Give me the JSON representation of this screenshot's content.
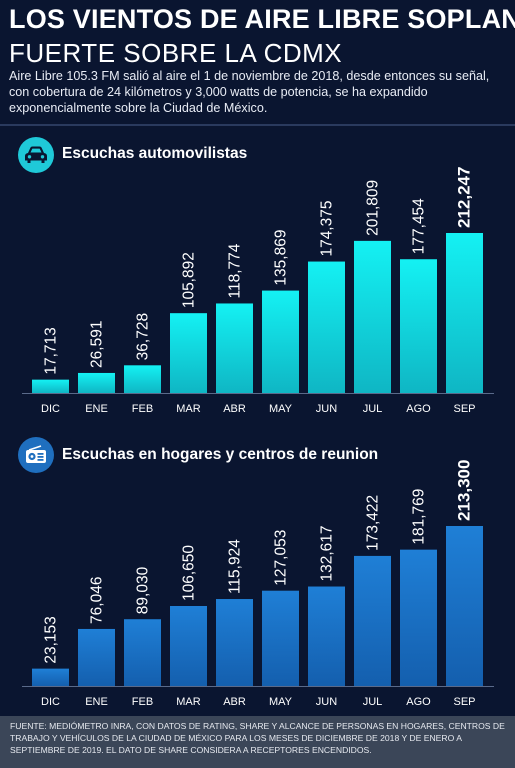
{
  "header": {
    "title_line1": "LOS VIENTOS DE AIRE LIBRE SOPLAN",
    "title_line2": "FUERTE SOBRE LA CDMX",
    "intro": "Aire Libre 105.3 FM salió al aire el 1 de noviembre de 2018, desde entonces su señal, con cobertura de 24 kilómetros y 3,000 watts de potencia, se ha expandido exponencialmente sobre la Ciudad de México."
  },
  "sections": [
    {
      "title": "Escuchas automovilistas",
      "icon": "car-icon",
      "icon_bg": "#1fc9d8"
    },
    {
      "title": "Escuchas en hogares y centros de reunion",
      "icon": "radio-icon",
      "icon_bg": "#1f6fbf"
    }
  ],
  "chart_data": [
    {
      "type": "bar",
      "title": "Escuchas automovilistas",
      "categories": [
        "DIC",
        "ENE",
        "FEB",
        "MAR",
        "ABR",
        "MAY",
        "JUN",
        "JUL",
        "AGO",
        "SEP"
      ],
      "values": [
        17713,
        26591,
        36728,
        105892,
        118774,
        135869,
        174375,
        201809,
        177454,
        212247
      ],
      "labels": [
        "17,713",
        "26,591",
        "36,728",
        "105,892",
        "118,774",
        "135,869",
        "174,375",
        "201,809",
        "177,454",
        "212,247"
      ],
      "bold_last_label": true,
      "colors": {
        "top": "#14f1f3",
        "bottom": "#0fb6c4"
      },
      "ylim": [
        0,
        212247
      ],
      "grid": false,
      "legend": "none"
    },
    {
      "type": "bar",
      "title": "Escuchas en hogares y centros de reunion",
      "categories": [
        "DIC",
        "ENE",
        "FEB",
        "MAR",
        "ABR",
        "MAY",
        "JUN",
        "JUL",
        "AGO",
        "SEP"
      ],
      "values": [
        23153,
        76046,
        89030,
        106650,
        115924,
        127053,
        132617,
        173422,
        181769,
        213300
      ],
      "labels": [
        "23,153",
        "76,046",
        "89,030",
        "106,650",
        "115,924",
        "127,053",
        "132,617",
        "173,422",
        "181,769",
        "213,300"
      ],
      "bold_last_label": true,
      "colors": {
        "top": "#1f7fd6",
        "bottom": "#145fae"
      },
      "ylim": [
        0,
        213300
      ],
      "grid": false,
      "legend": "none"
    }
  ],
  "footer": {
    "text": "FUENTE: MEDIÓMETRO INRA, CON DATOS DE RATING, SHARE Y ALCANCE DE PERSONAS EN HOGARES, CENTROS DE TRABAJO Y VEHÍCULOS DE LA CIUDAD DE MÉXICO PARA LOS MESES DE DICIEMBRE DE 2018 Y DE ENERO A SEPTIEMBRE DE 2019. EL DATO DE SHARE CONSIDERA A RECEPTORES ENCENDIDOS."
  }
}
